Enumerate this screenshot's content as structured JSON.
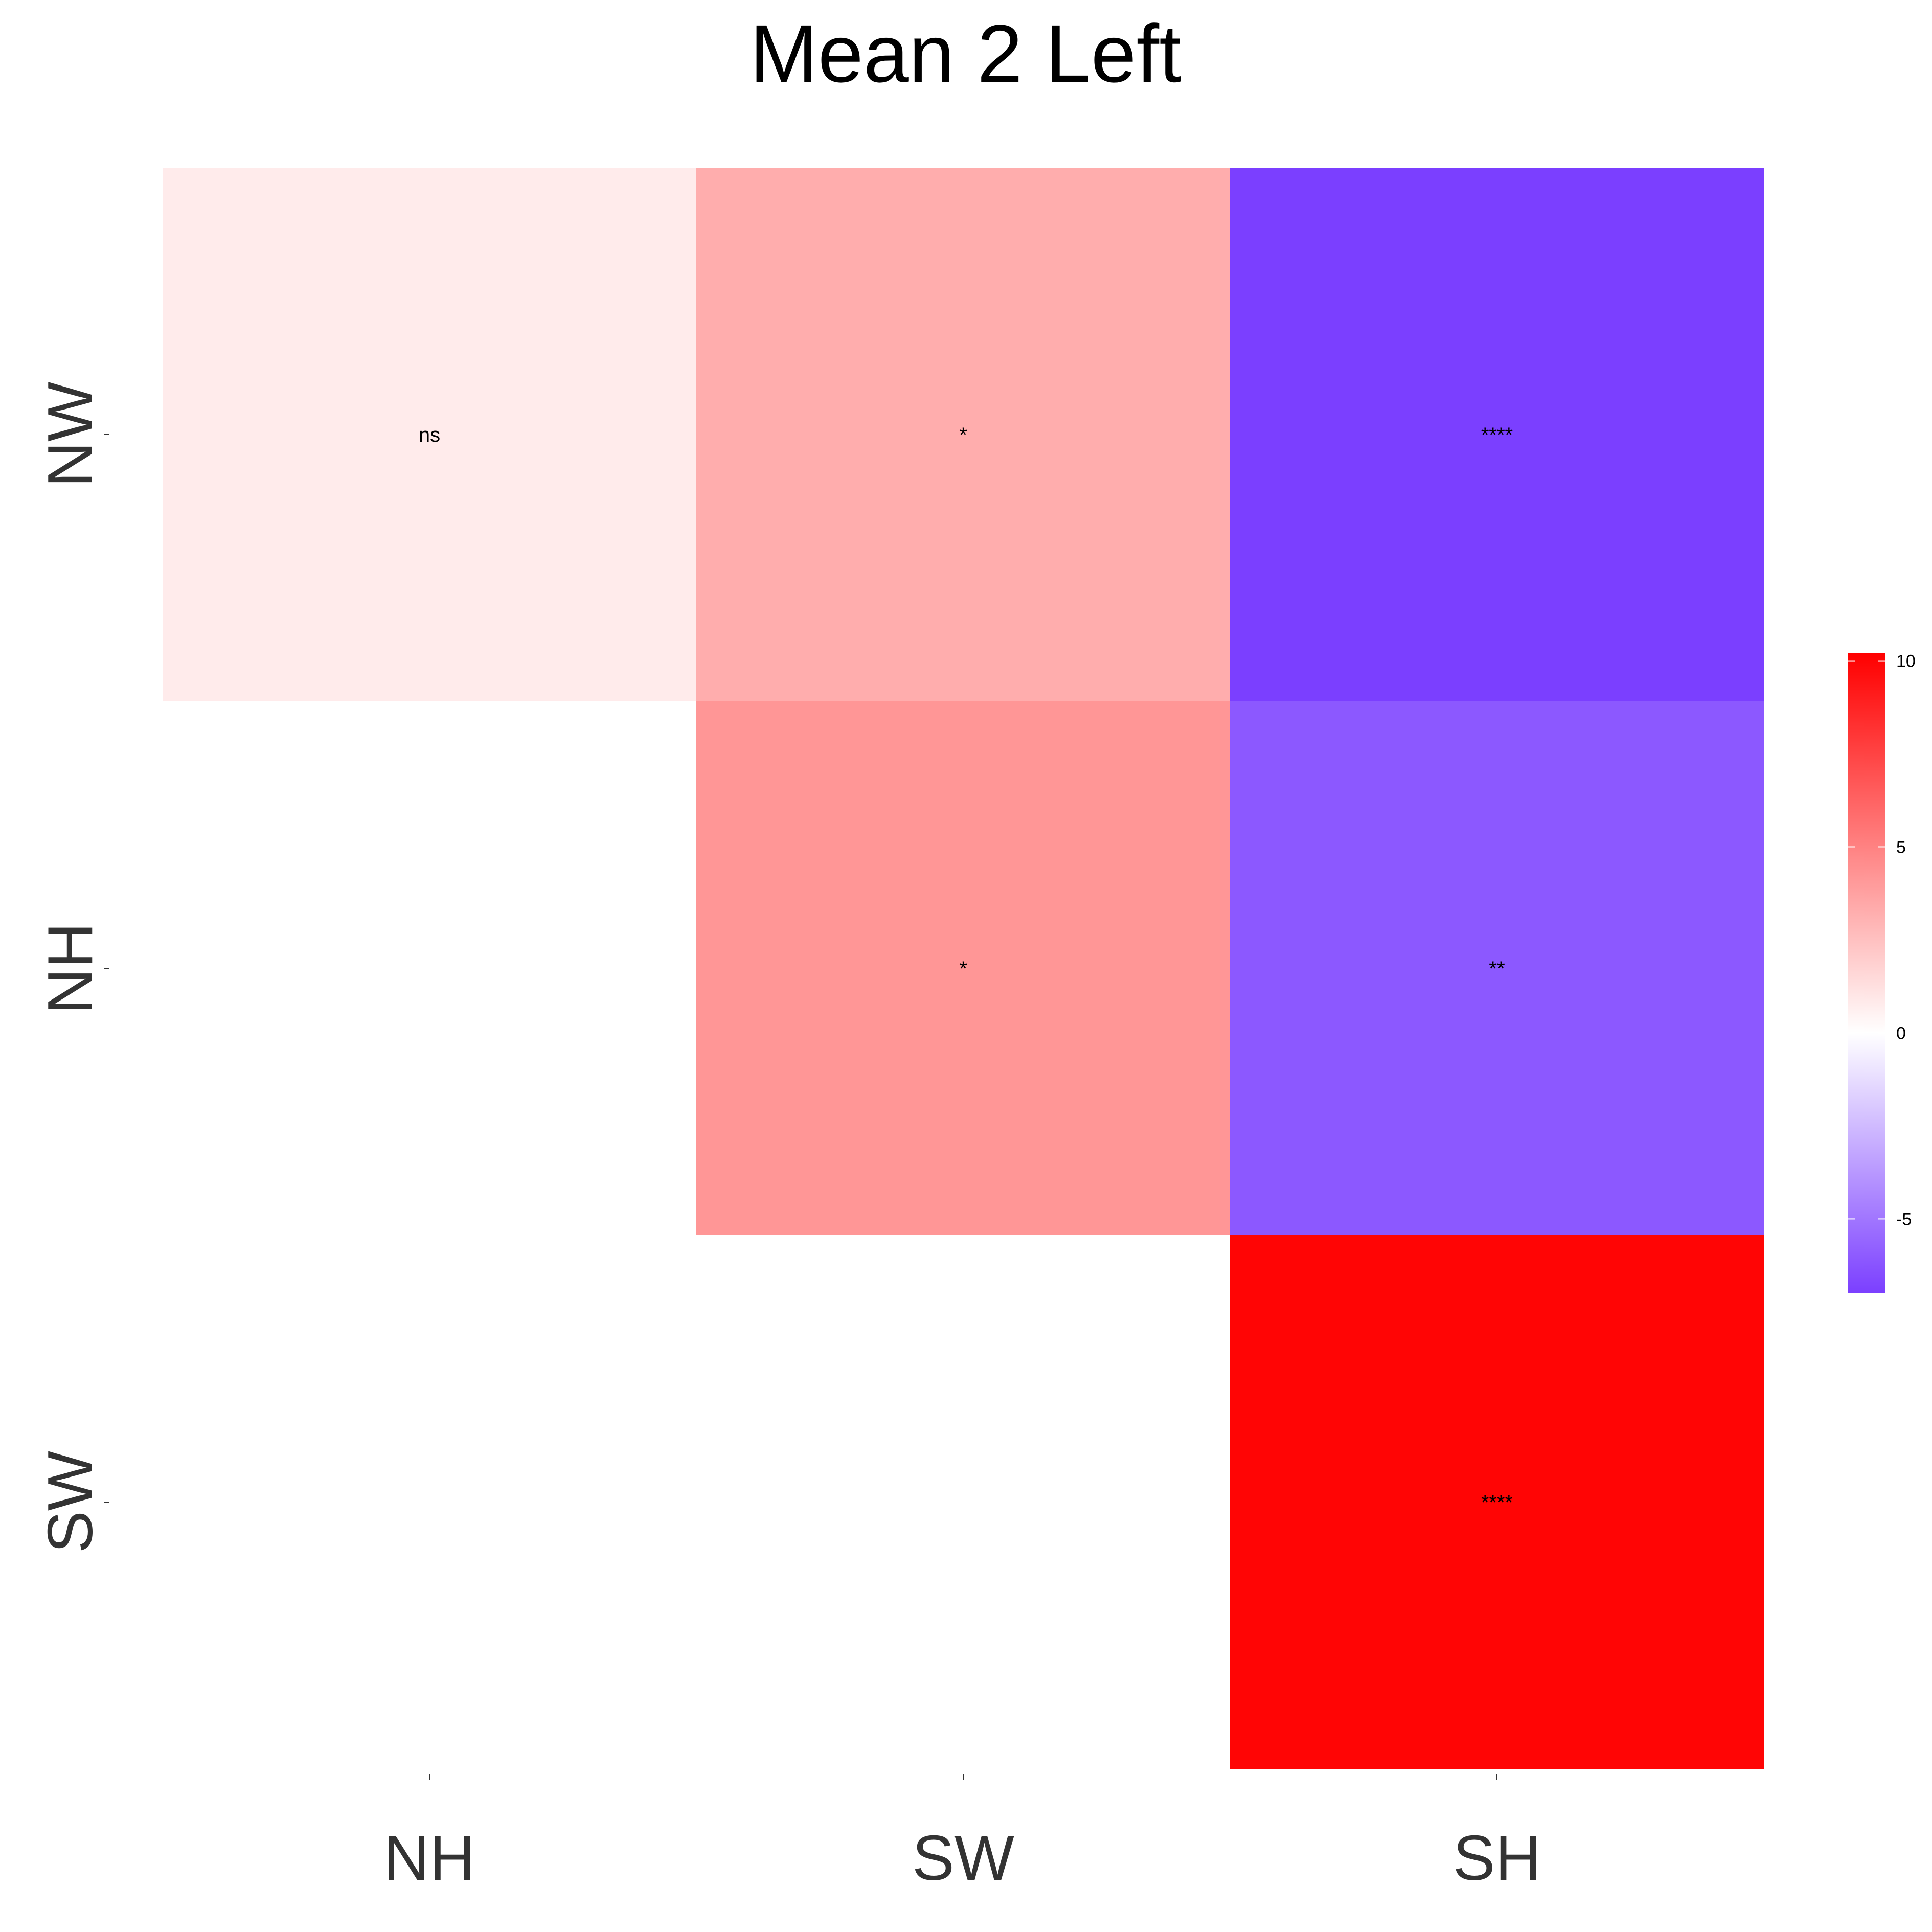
{
  "chart_data": {
    "type": "heatmap",
    "title": "Mean 2 Left",
    "xlabel": "",
    "ylabel": "",
    "x_categories": [
      "NH",
      "SW",
      "SH"
    ],
    "y_categories": [
      "NW",
      "NH",
      "SW"
    ],
    "cells": [
      {
        "row": "NW",
        "col": "NH",
        "value": 0.8,
        "label": "ns"
      },
      {
        "row": "NW",
        "col": "SW",
        "value": 3.3,
        "label": "*"
      },
      {
        "row": "NW",
        "col": "SH",
        "value": -7.0,
        "label": "****"
      },
      {
        "row": "NH",
        "col": "SW",
        "value": 4.2,
        "label": "*"
      },
      {
        "row": "NH",
        "col": "SH",
        "value": -6.1,
        "label": "**"
      },
      {
        "row": "SW",
        "col": "SH",
        "value": 10.0,
        "label": "****"
      }
    ],
    "colorbar": {
      "min": -7.0,
      "max": 10.2,
      "ticks": [
        -5,
        0,
        5,
        10
      ],
      "tick_labels": [
        "-5",
        "0",
        "5",
        "10"
      ],
      "low_color": "#7b3fff",
      "mid_color": "#ffffff",
      "high_color": "#ff0000",
      "midpoint": 0
    },
    "grid": false,
    "legend_position": "right"
  }
}
